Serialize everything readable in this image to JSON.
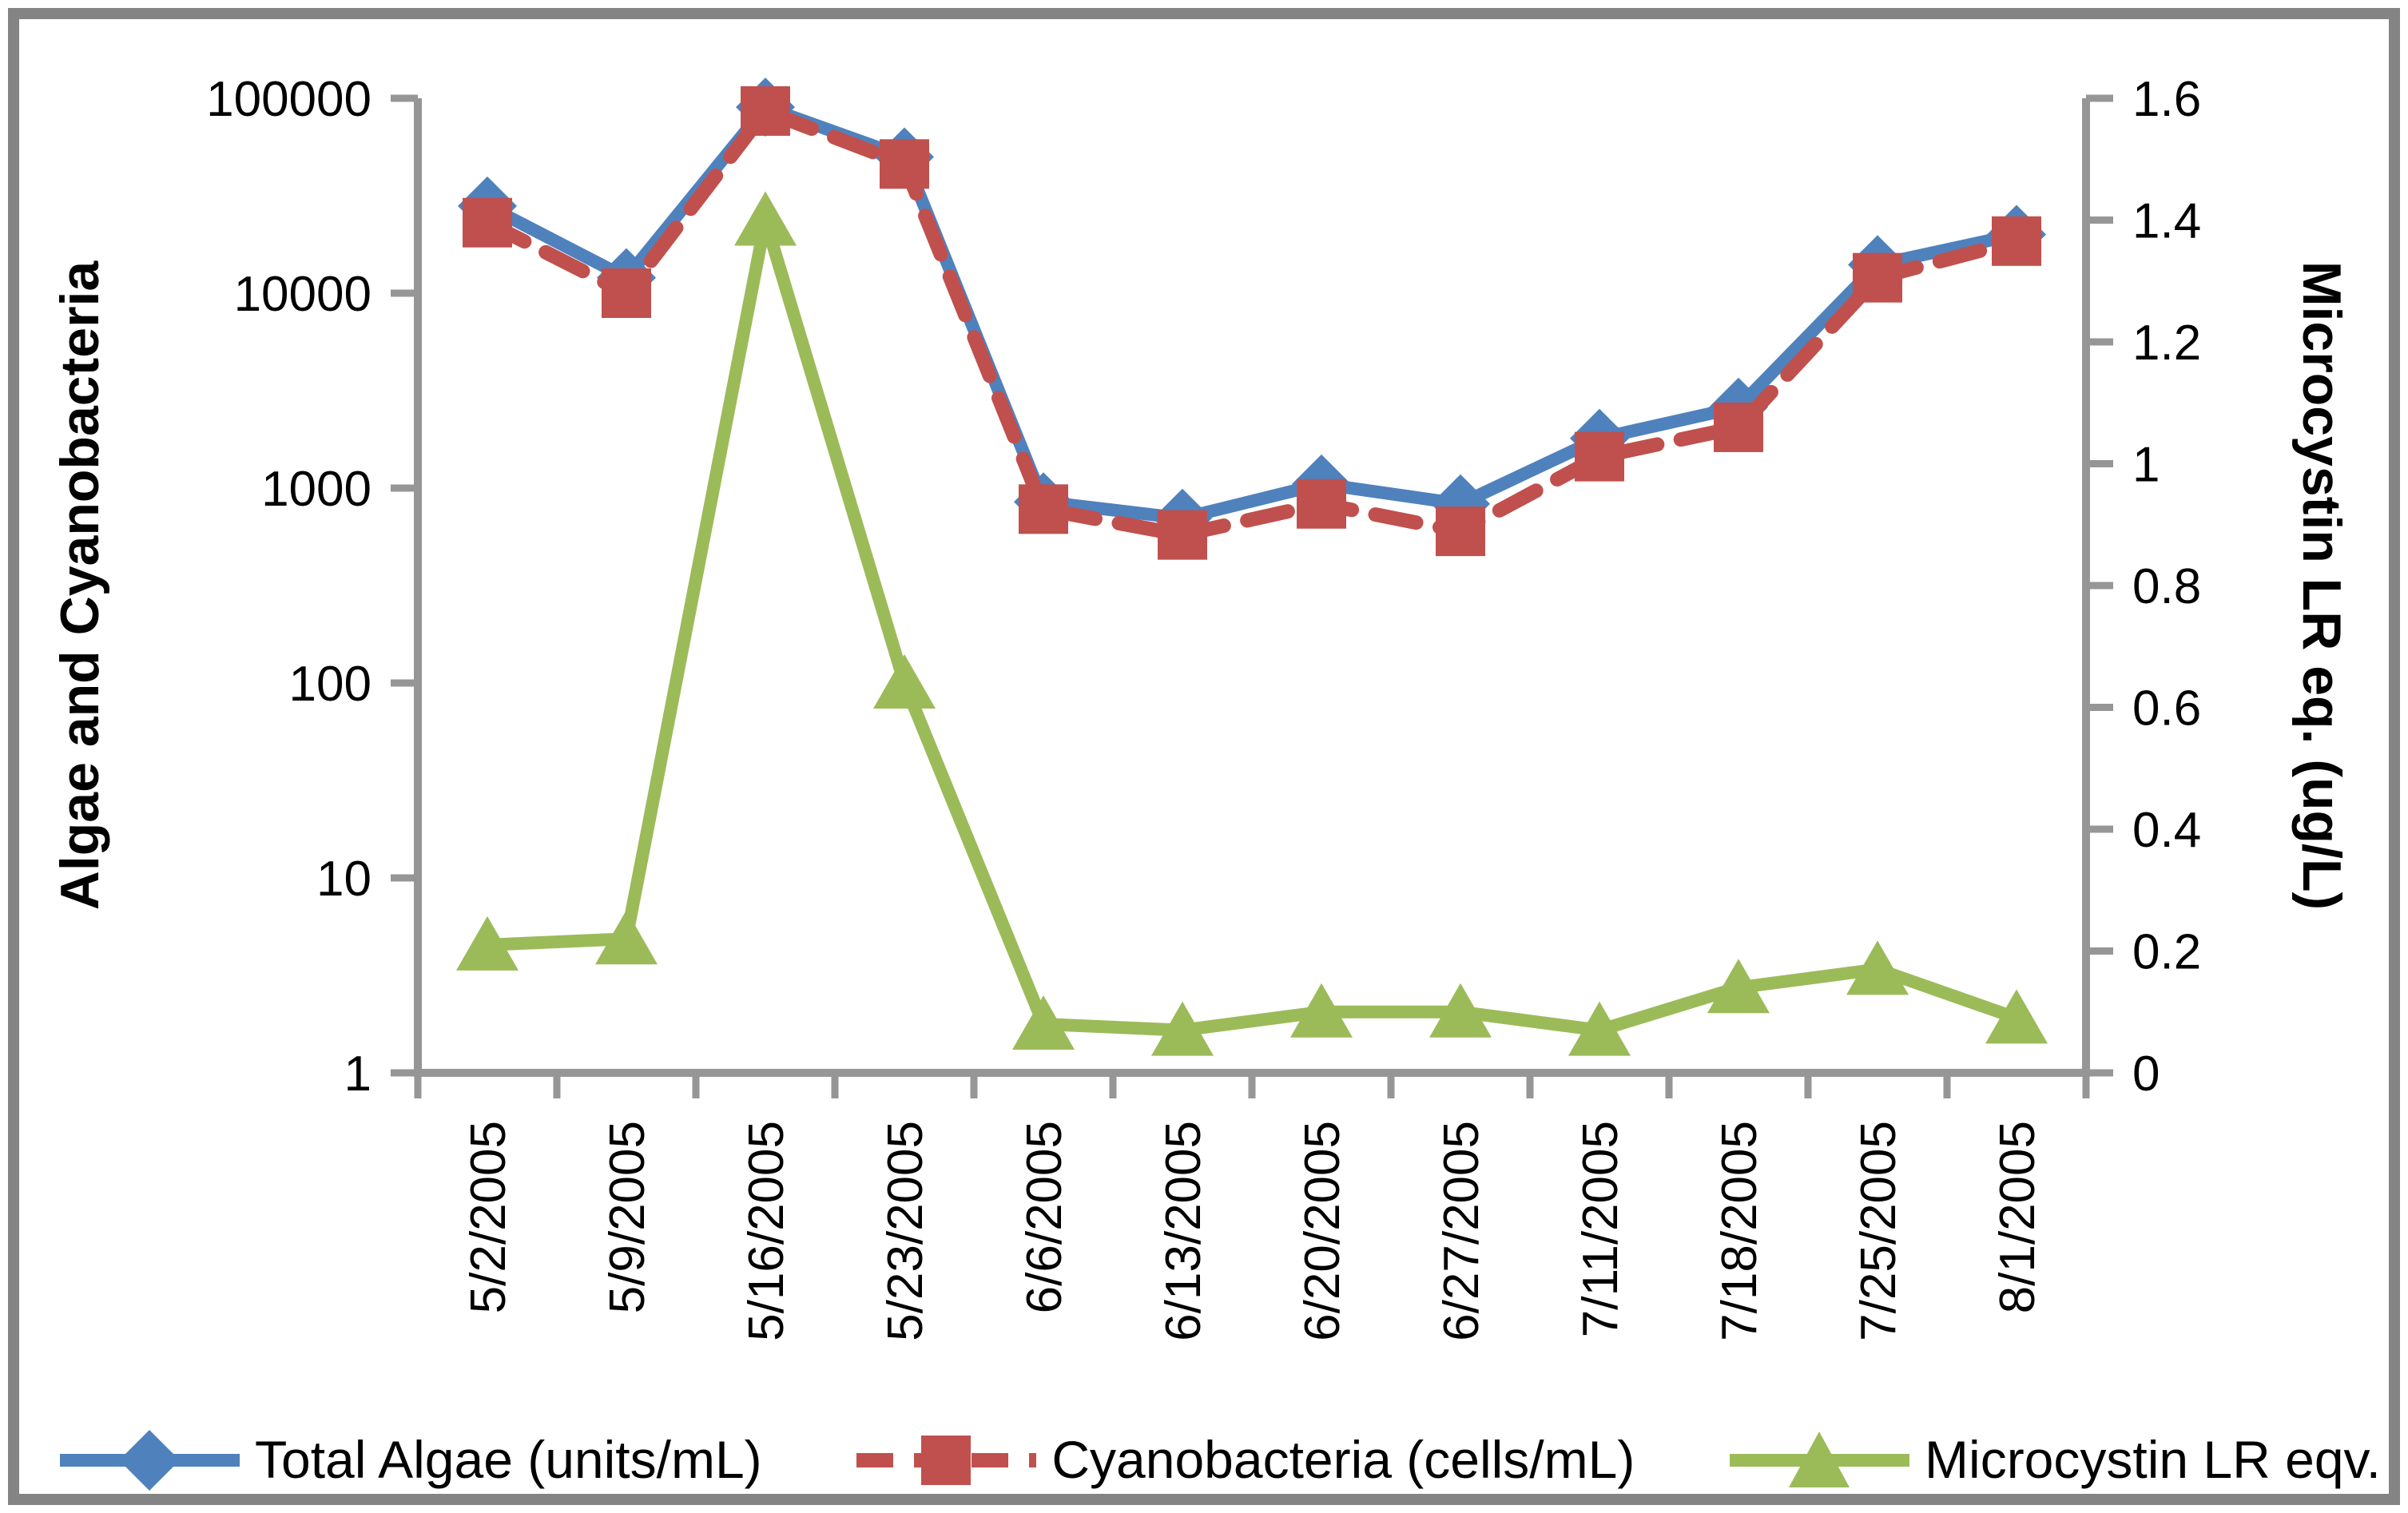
{
  "chart_data": {
    "type": "line",
    "title": "",
    "categories": [
      "5/2/2005",
      "5/9/2005",
      "5/16/2005",
      "5/23/2005",
      "6/6/2005",
      "6/13/2005",
      "6/20/2005",
      "6/27/2005",
      "7/11/2005",
      "7/18/2005",
      "7/25/2005",
      "8/1/2005"
    ],
    "series": [
      {
        "name": "Total Algae (units/mL)",
        "axis": "left",
        "color": "#4F81BD",
        "marker": "diamond",
        "line": "solid",
        "values": [
          28000,
          12000,
          90000,
          50000,
          850,
          700,
          1050,
          830,
          1800,
          2600,
          14000,
          20000
        ]
      },
      {
        "name": "Cyanobacteria (cells/mL)",
        "axis": "left",
        "color": "#C0504D",
        "marker": "square",
        "line": "dashed",
        "values": [
          23000,
          10000,
          86000,
          46000,
          780,
          575,
          830,
          600,
          1450,
          2050,
          12000,
          18500
        ]
      },
      {
        "name": "Microcystin LR eqv.",
        "axis": "right",
        "color": "#9BBB59",
        "marker": "triangle",
        "line": "solid",
        "values": [
          0.21,
          0.22,
          1.4,
          0.64,
          0.08,
          0.07,
          0.1,
          0.1,
          0.07,
          0.14,
          0.17,
          0.09
        ]
      }
    ],
    "left_axis": {
      "label": "Algae and Cyanobacteria",
      "scale": "log",
      "min": 1,
      "max": 100000,
      "ticks": [
        "1",
        "10",
        "100",
        "1000",
        "10000",
        "100000"
      ]
    },
    "right_axis": {
      "label": "Microcystin LR eq. (ug/L)",
      "scale": "linear",
      "min": 0,
      "max": 1.6,
      "ticks": [
        "0",
        "0.2",
        "0.4",
        "0.6",
        "0.8",
        "1",
        "1.2",
        "1.4",
        "1.6"
      ]
    },
    "legend_position": "bottom",
    "grid": false
  },
  "colors": {
    "axis": "#969696",
    "border": "#848484",
    "text": "#000000",
    "background": "#FFFFFF"
  }
}
